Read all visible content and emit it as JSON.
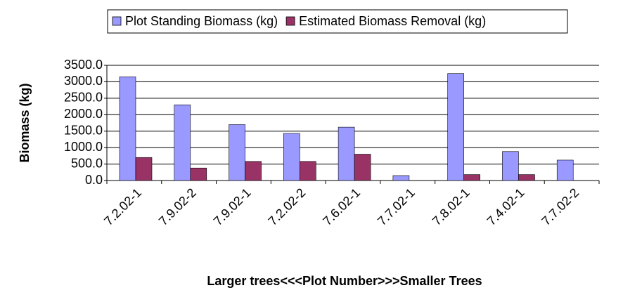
{
  "chart_data": {
    "type": "bar",
    "xlabel": "Larger trees<<<Plot Number>>>Smaller Trees",
    "ylabel": "Biomass (kg)",
    "categories": [
      "7.2.02-1",
      "7.9.02-2",
      "7.9.02-1",
      "7.2.02-2",
      "7.6.02-1",
      "7.7.02-1",
      "7.8.02-1",
      "7.4.02-1",
      "7.7.02-2"
    ],
    "series": [
      {
        "name": "Plot Standing Biomass (kg)",
        "color": "#9999ff",
        "values": [
          3150,
          2300,
          1700,
          1430,
          1620,
          150,
          3250,
          880,
          620
        ]
      },
      {
        "name": "Estimated Biomass Removal (kg)",
        "color": "#993366",
        "values": [
          700,
          380,
          580,
          580,
          800,
          0,
          180,
          180,
          0
        ]
      }
    ],
    "ylim": [
      0,
      3500
    ],
    "yticks": [
      {
        "value": 0,
        "label": "0.0"
      },
      {
        "value": 500,
        "label": "500.0"
      },
      {
        "value": 1000,
        "label": "1000.0"
      },
      {
        "value": 1500,
        "label": "1500.0"
      },
      {
        "value": 2000,
        "label": "2000.0"
      },
      {
        "value": 2500,
        "label": "2500.0"
      },
      {
        "value": 3000,
        "label": "3000.0"
      },
      {
        "value": 3500,
        "label": "3500.0"
      }
    ],
    "grid": true,
    "legend": "top"
  }
}
